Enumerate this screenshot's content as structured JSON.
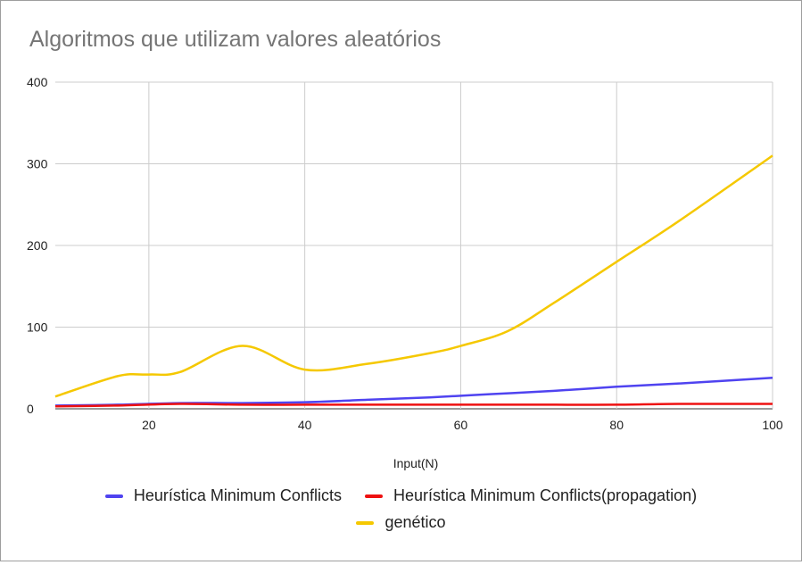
{
  "chart_data": {
    "type": "line",
    "title": "Algoritmos que utilizam valores aleatórios",
    "xlabel": "Input(N)",
    "ylabel": "",
    "xlim": [
      8,
      100
    ],
    "ylim": [
      0,
      400
    ],
    "xticks": [
      20,
      40,
      60,
      80,
      100
    ],
    "yticks": [
      0,
      100,
      200,
      300,
      400
    ],
    "grid": true,
    "legend_position": "bottom",
    "series": [
      {
        "name": "Heurística Minimum Conflicts",
        "color": "#4f43f0",
        "x": [
          8,
          16,
          24,
          32,
          40,
          48,
          56,
          64,
          72,
          80,
          88,
          100
        ],
        "y": [
          4,
          5,
          7,
          7,
          8,
          11,
          14,
          18,
          22,
          27,
          31,
          38
        ]
      },
      {
        "name": "Heurística Minimum Conflicts(propagation)",
        "color": "#ee1111",
        "x": [
          8,
          16,
          24,
          32,
          40,
          48,
          56,
          64,
          72,
          80,
          88,
          100
        ],
        "y": [
          3,
          4,
          6,
          5,
          5,
          5,
          5,
          5,
          5,
          5,
          6,
          6
        ]
      },
      {
        "name": "genético",
        "color": "#f5c800",
        "x": [
          8,
          16,
          20,
          24,
          32,
          40,
          48,
          56,
          60,
          66,
          72,
          80,
          88,
          100
        ],
        "y": [
          15,
          40,
          42,
          45,
          77,
          48,
          55,
          68,
          77,
          95,
          130,
          180,
          230,
          310
        ]
      }
    ]
  }
}
